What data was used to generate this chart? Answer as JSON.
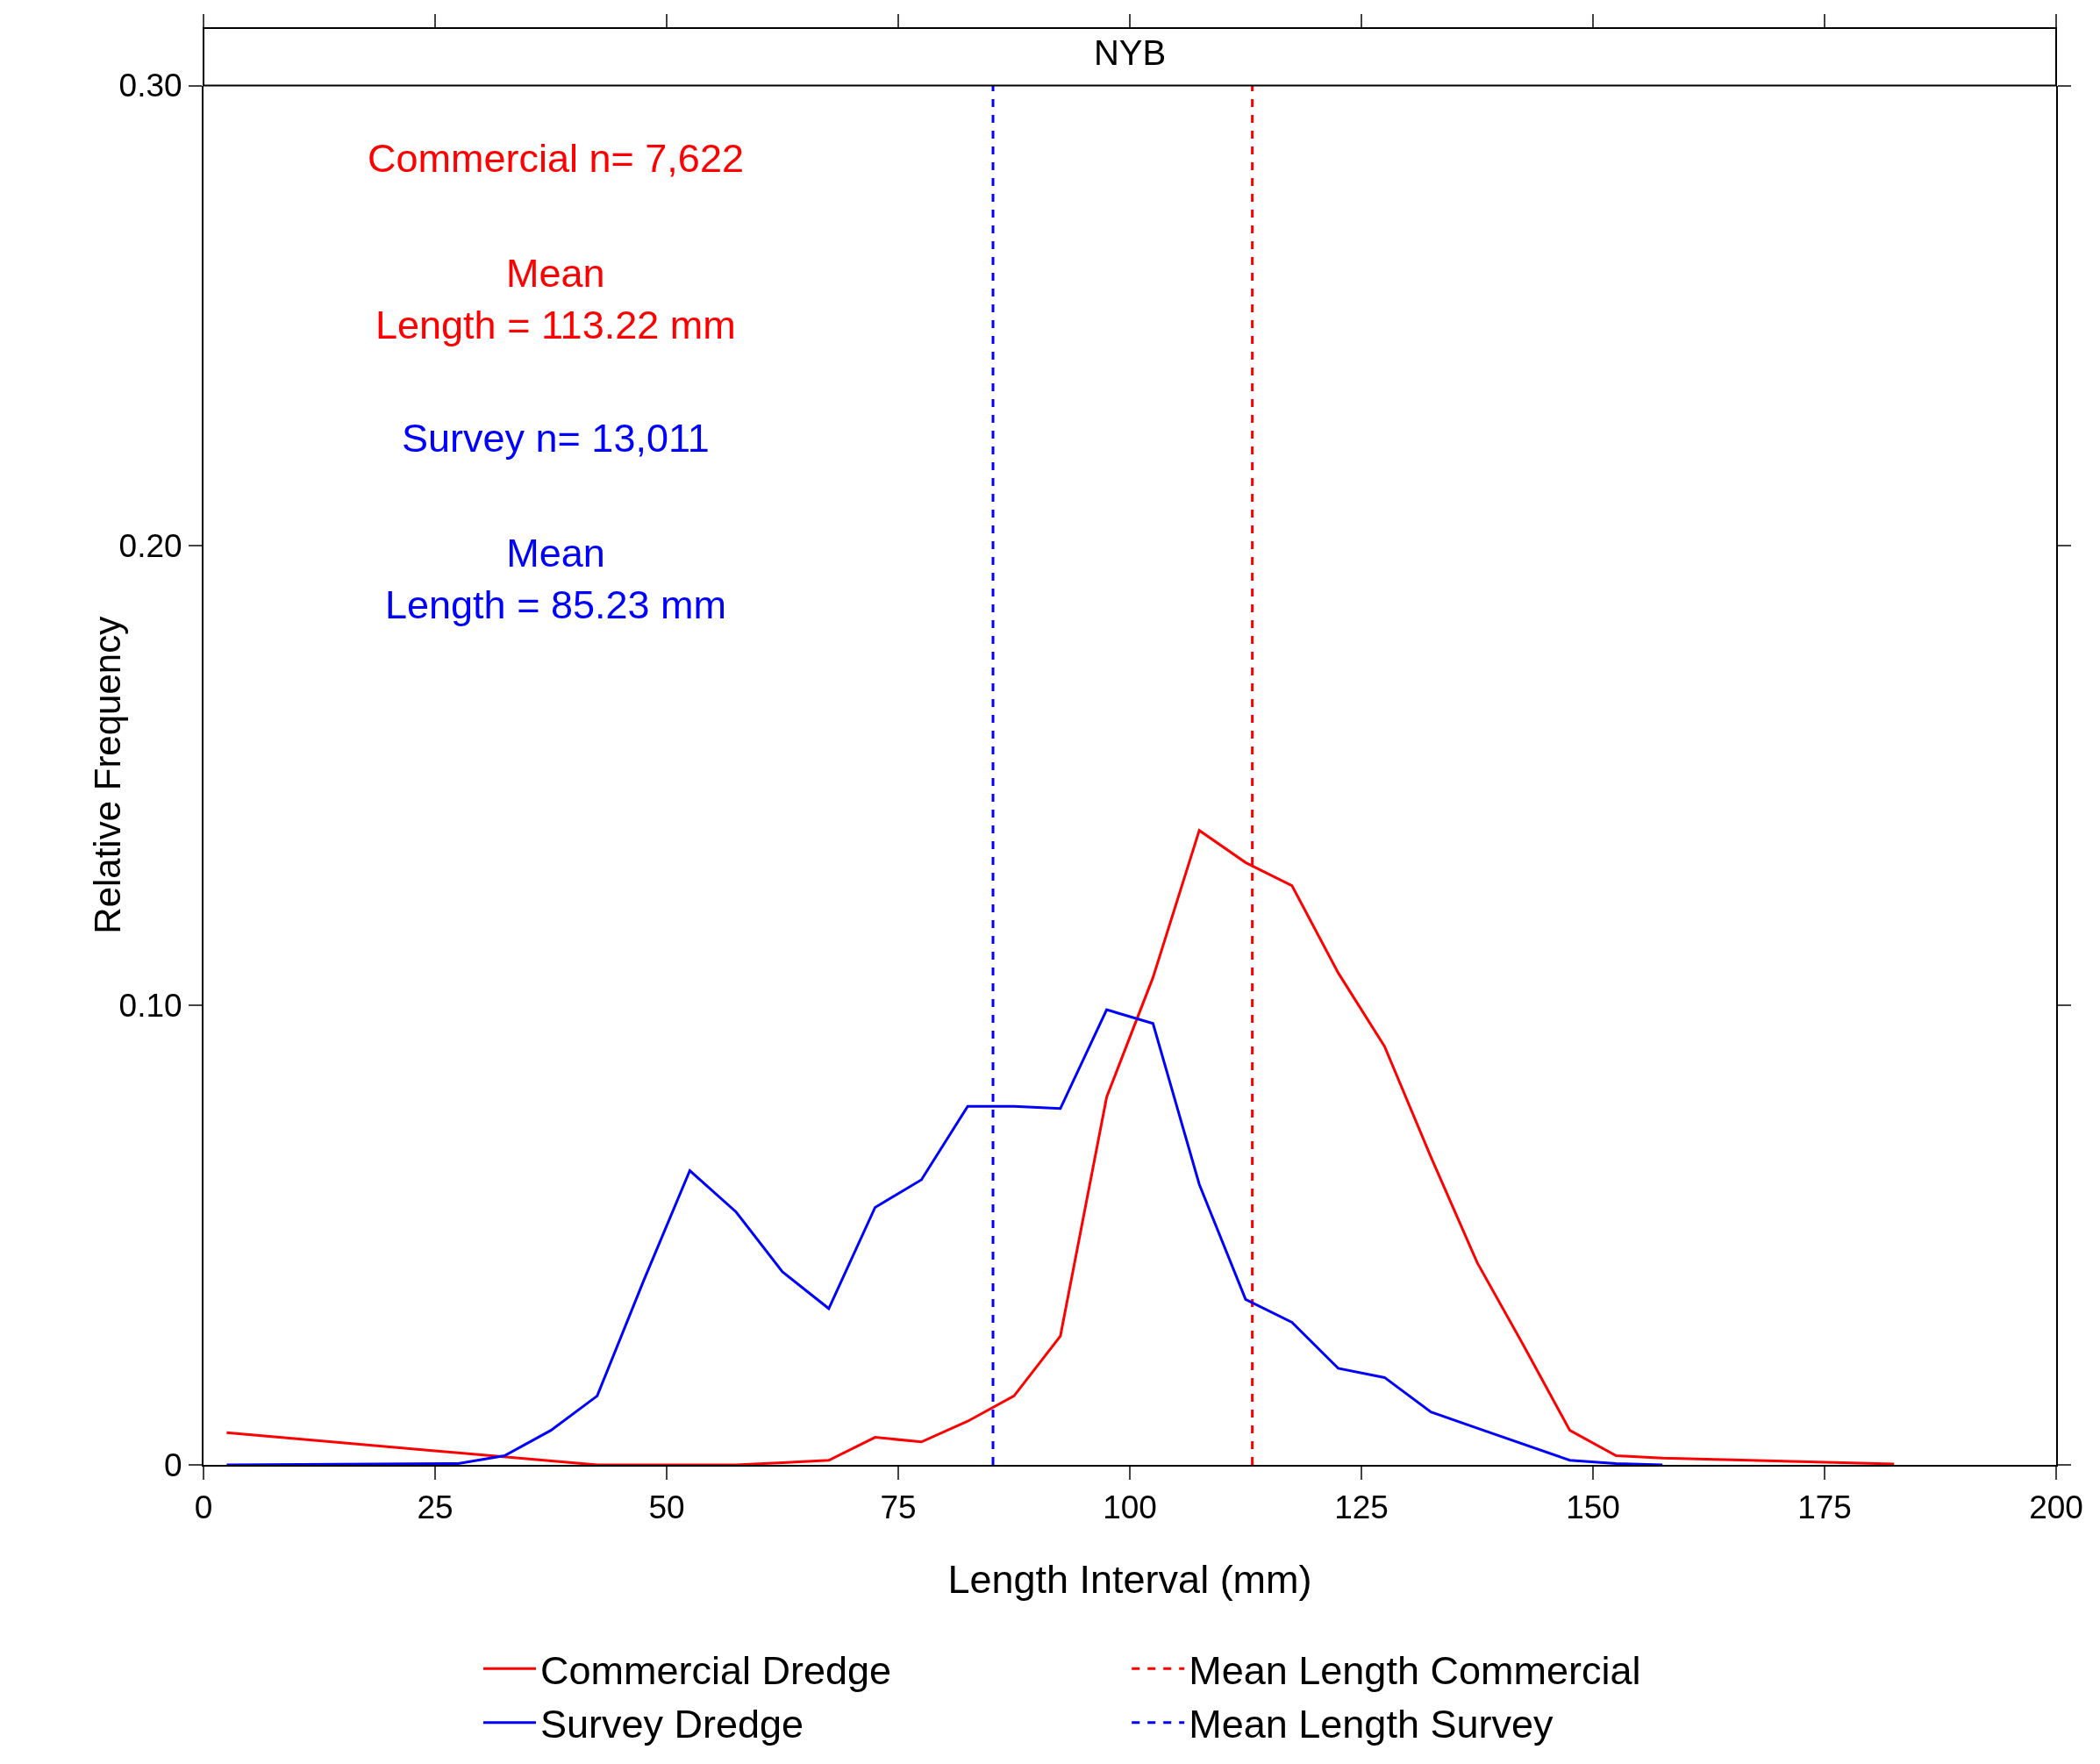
{
  "chart_data": {
    "type": "line",
    "title": "NYB",
    "xlabel": "Length Interval (mm)",
    "ylabel": "Relative Frequency",
    "series": [
      {
        "name": "Commercial Dredge",
        "color": "#ff0000",
        "x": [
          2.5,
          42.5,
          47.5,
          52.5,
          57.5,
          62.5,
          67.5,
          72.5,
          77.5,
          82.5,
          87.5,
          92.5,
          97.5,
          102.5,
          107.5,
          112.5,
          117.5,
          122.5,
          127.5,
          132.5,
          137.5,
          142.5,
          147.5,
          152.5,
          157.5,
          182.5
        ],
        "values": [
          0.007,
          0,
          0,
          0,
          0,
          0.0005,
          0.001,
          0.006,
          0.005,
          0.0095,
          0.015,
          0.028,
          0.08,
          0.106,
          0.138,
          0.131,
          0.126,
          0.107,
          0.091,
          0.067,
          0.044,
          0.026,
          0.0075,
          0.002,
          0.0015,
          0.0002
        ]
      },
      {
        "name": "Survey Dredge",
        "color": "#0000ff",
        "x": [
          2.5,
          27.5,
          32.5,
          37.5,
          42.5,
          47.5,
          52.5,
          57.5,
          62.5,
          67.5,
          72.5,
          77.5,
          82.5,
          87.5,
          92.5,
          97.5,
          102.5,
          107.5,
          112.5,
          117.5,
          122.5,
          127.5,
          132.5,
          137.5,
          147.5,
          152.5,
          157.5
        ],
        "values": [
          0,
          0.0003,
          0.002,
          0.0075,
          0.015,
          0.04,
          0.064,
          0.055,
          0.042,
          0.034,
          0.056,
          0.062,
          0.078,
          0.078,
          0.0775,
          0.099,
          0.096,
          0.061,
          0.036,
          0.031,
          0.021,
          0.019,
          0.0115,
          0.008,
          0.001,
          0.0003,
          0
        ]
      }
    ],
    "ref_lines": [
      {
        "axis": "x",
        "value": 113.22,
        "label": "Mean Length Commercial",
        "color": "#ff0000",
        "line_style": "dashed"
      },
      {
        "axis": "x",
        "value": 85.23,
        "label": "Mean Length Survey",
        "color": "#0000ff",
        "line_style": "dashed"
      }
    ],
    "annotations": [
      "Commercial n= 7,622",
      "Mean\nLength = 113.22 mm",
      "Survey n= 13,011",
      "Mean\nLength = 85.23 mm"
    ],
    "xlim": [
      0,
      200
    ],
    "xticks": [
      0,
      25,
      50,
      75,
      100,
      125,
      150,
      175,
      200
    ],
    "ylim": [
      0,
      0.3
    ],
    "yticks": [
      0,
      {
        "value": 0.1,
        "label": "0.10"
      },
      {
        "value": 0.2,
        "label": "0.20"
      },
      {
        "value": 0.3,
        "label": "0.30"
      }
    ],
    "grid": false,
    "legend": "bottom",
    "marker": "none",
    "line_style": "solid"
  }
}
